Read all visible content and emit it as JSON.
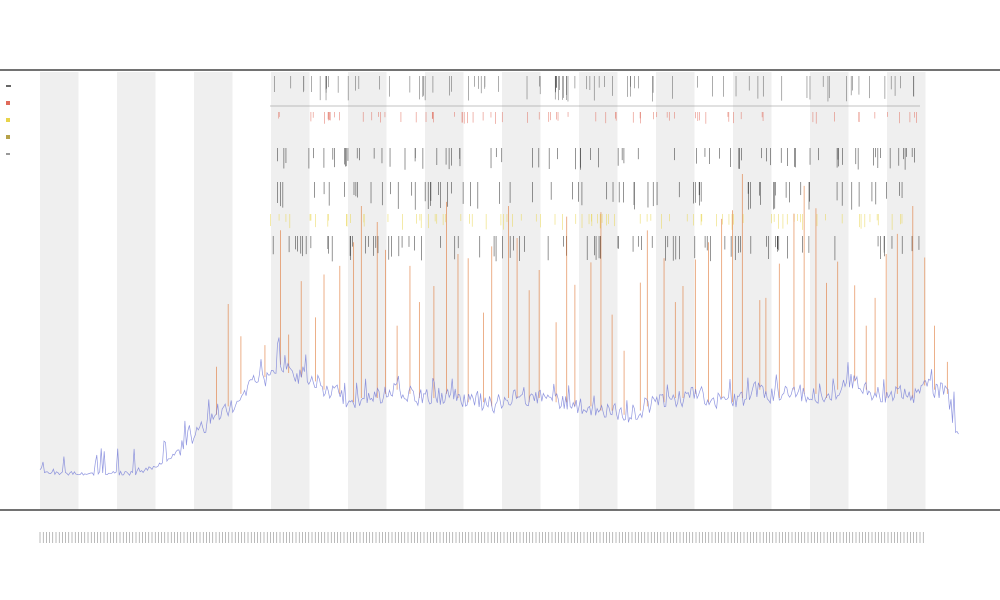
{
  "chart_data": {
    "type": "line",
    "title": "",
    "subtitles": [
      "",
      ""
    ],
    "xlabel": "",
    "ylabel": "",
    "ylim": [
      0,
      100
    ],
    "grid": false,
    "legend_position": "top-left",
    "legend": [
      {
        "marker": "dash",
        "color": "#333333",
        "label": ""
      },
      {
        "marker": "square",
        "color": "#e06a5a",
        "label": ""
      },
      {
        "marker": "square",
        "color": "#e8d44a",
        "label": ""
      },
      {
        "marker": "square",
        "color": "#b6a24a",
        "label": ""
      }
    ],
    "shaded_bands": 12,
    "tracks": [
      {
        "name": "",
        "kind": "ticks",
        "color": "#555555"
      },
      {
        "name": "",
        "kind": "ticks",
        "color": "#e06a5a"
      },
      {
        "name": "",
        "kind": "ticks",
        "color": "#222222"
      },
      {
        "name": "",
        "kind": "ticks",
        "color": "#222222"
      },
      {
        "name": "",
        "kind": "ticks",
        "color": "#e8d44a"
      },
      {
        "name": "",
        "kind": "ticks",
        "color": "#222222"
      }
    ],
    "series": [
      {
        "name": "",
        "kind": "line",
        "color": "#6b73d6",
        "values": [
          5,
          4,
          4,
          4,
          4,
          4,
          4,
          4,
          4,
          5,
          6,
          8,
          11,
          14,
          16,
          18,
          20,
          23,
          26,
          27,
          30,
          28,
          27,
          26,
          24,
          23,
          21,
          22,
          22,
          23,
          24,
          23,
          22,
          22,
          23,
          22,
          21,
          21,
          20,
          22,
          22,
          21,
          22,
          21,
          21,
          20,
          20,
          19,
          19,
          18,
          19,
          20,
          21,
          22,
          22,
          23,
          21,
          22,
          21,
          22,
          24,
          23,
          22,
          24,
          23,
          23,
          22,
          24,
          26,
          24,
          23,
          22,
          23,
          22,
          25,
          24,
          23,
          10
        ]
      },
      {
        "name": "",
        "kind": "spikes",
        "color": "#e07a3a",
        "values": [
          0,
          0,
          0,
          0,
          0,
          0,
          0,
          0,
          0,
          0,
          0,
          0,
          0,
          0,
          0,
          15,
          32,
          18,
          0,
          10,
          42,
          12,
          30,
          20,
          36,
          40,
          50,
          60,
          55,
          45,
          20,
          40,
          30,
          35,
          60,
          45,
          45,
          28,
          50,
          60,
          50,
          35,
          40,
          25,
          58,
          38,
          45,
          62,
          30,
          20,
          40,
          55,
          45,
          30,
          35,
          42,
          50,
          56,
          60,
          70,
          28,
          30,
          42,
          55,
          65,
          58,
          36,
          40,
          30,
          20,
          30,
          45,
          50,
          60,
          40,
          20,
          10,
          0
        ]
      }
    ]
  }
}
